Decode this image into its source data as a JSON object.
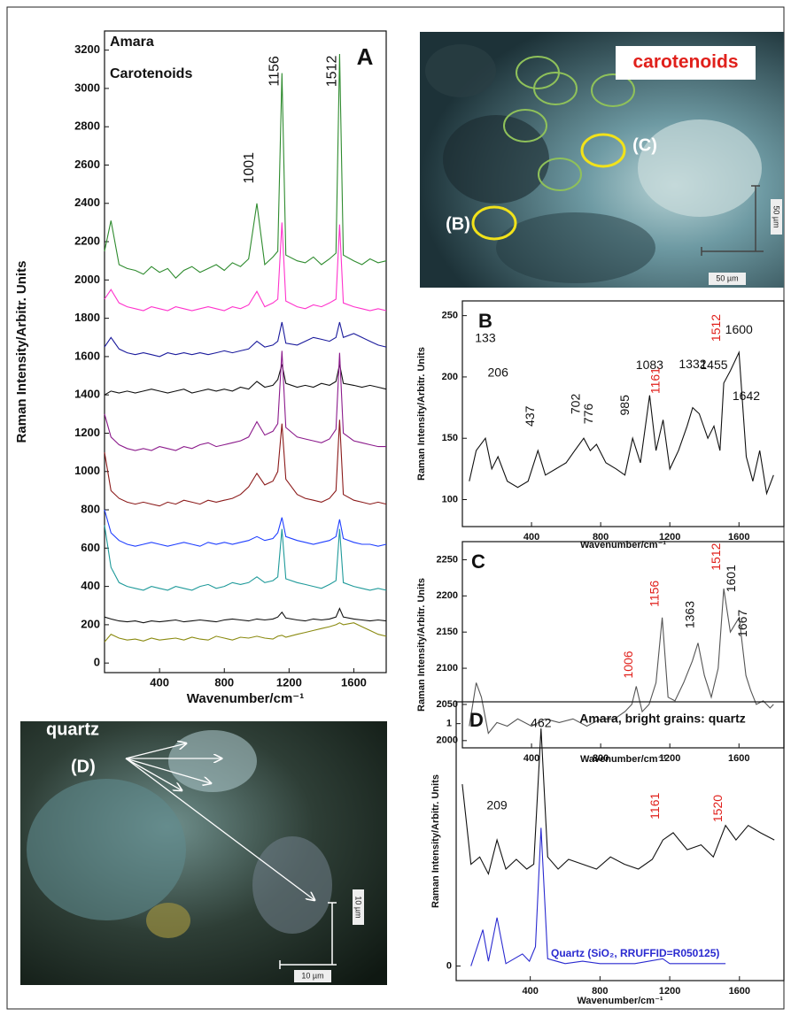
{
  "chart_data": [
    {
      "type": "line",
      "panel": "A",
      "title": "Amara",
      "subtitle": "Carotenoids",
      "x_label": "Wavenumber/cm⁻¹",
      "y_label": "Raman Intensity/Arbitr. Units",
      "x": [
        60,
        100,
        150,
        200,
        250,
        300,
        350,
        400,
        450,
        500,
        550,
        600,
        650,
        700,
        750,
        800,
        850,
        900,
        950,
        1001,
        1050,
        1100,
        1130,
        1156,
        1180,
        1250,
        1300,
        1350,
        1400,
        1450,
        1490,
        1512,
        1535,
        1600,
        1650,
        1700,
        1750,
        1800
      ],
      "series": [
        {
          "color": "#2e8b2e",
          "values": [
            2150,
            2310,
            2080,
            2060,
            2050,
            2030,
            2070,
            2040,
            2060,
            2010,
            2050,
            2070,
            2040,
            2060,
            2080,
            2050,
            2090,
            2070,
            2110,
            2400,
            2080,
            2120,
            2150,
            3080,
            2130,
            2100,
            2090,
            2120,
            2080,
            2110,
            2140,
            3180,
            2130,
            2100,
            2080,
            2110,
            2090,
            2100
          ]
        },
        {
          "color": "#ff33cc",
          "values": [
            1900,
            1950,
            1880,
            1860,
            1850,
            1840,
            1860,
            1850,
            1840,
            1860,
            1850,
            1840,
            1850,
            1860,
            1850,
            1840,
            1860,
            1850,
            1870,
            1940,
            1860,
            1880,
            1900,
            2300,
            1890,
            1860,
            1850,
            1870,
            1860,
            1880,
            1900,
            2290,
            1880,
            1860,
            1850,
            1840,
            1850,
            1840
          ]
        },
        {
          "color": "#1a1a9c",
          "values": [
            1650,
            1700,
            1640,
            1620,
            1610,
            1620,
            1610,
            1600,
            1620,
            1610,
            1620,
            1610,
            1620,
            1610,
            1620,
            1630,
            1620,
            1630,
            1640,
            1680,
            1650,
            1660,
            1680,
            1780,
            1670,
            1660,
            1680,
            1700,
            1690,
            1680,
            1700,
            1780,
            1700,
            1720,
            1700,
            1680,
            1660,
            1650
          ]
        },
        {
          "color": "#111111",
          "values": [
            1400,
            1420,
            1410,
            1420,
            1410,
            1420,
            1430,
            1420,
            1410,
            1420,
            1430,
            1410,
            1420,
            1430,
            1420,
            1430,
            1420,
            1440,
            1430,
            1470,
            1440,
            1450,
            1480,
            1560,
            1460,
            1440,
            1450,
            1440,
            1460,
            1450,
            1470,
            1560,
            1460,
            1450,
            1440,
            1450,
            1440,
            1430
          ]
        },
        {
          "color": "#8b1a8b",
          "values": [
            1300,
            1180,
            1140,
            1120,
            1110,
            1120,
            1110,
            1130,
            1120,
            1110,
            1130,
            1120,
            1140,
            1150,
            1130,
            1140,
            1150,
            1160,
            1180,
            1260,
            1190,
            1210,
            1250,
            1630,
            1230,
            1180,
            1170,
            1160,
            1150,
            1170,
            1220,
            1620,
            1200,
            1160,
            1150,
            1140,
            1130,
            1130
          ]
        },
        {
          "color": "#8b1a1a",
          "values": [
            1100,
            900,
            860,
            840,
            830,
            840,
            830,
            820,
            840,
            830,
            850,
            840,
            830,
            850,
            840,
            850,
            860,
            880,
            920,
            990,
            930,
            950,
            1000,
            1250,
            960,
            880,
            860,
            850,
            840,
            860,
            900,
            1270,
            880,
            850,
            840,
            830,
            840,
            830
          ]
        },
        {
          "color": "#1f3fff",
          "values": [
            800,
            680,
            640,
            620,
            610,
            620,
            630,
            620,
            610,
            620,
            630,
            620,
            610,
            630,
            620,
            630,
            620,
            630,
            640,
            660,
            640,
            650,
            680,
            760,
            660,
            640,
            630,
            620,
            630,
            640,
            660,
            750,
            650,
            630,
            620,
            620,
            610,
            620
          ]
        },
        {
          "color": "#1f9a9a",
          "values": [
            720,
            500,
            420,
            400,
            390,
            380,
            400,
            390,
            380,
            400,
            390,
            380,
            400,
            410,
            390,
            400,
            420,
            410,
            420,
            450,
            420,
            430,
            450,
            700,
            440,
            420,
            410,
            400,
            390,
            410,
            430,
            700,
            420,
            400,
            390,
            380,
            390,
            380
          ]
        },
        {
          "color": "#111111",
          "values": [
            240,
            230,
            220,
            215,
            220,
            210,
            220,
            215,
            220,
            225,
            215,
            220,
            225,
            220,
            215,
            225,
            230,
            225,
            220,
            230,
            225,
            230,
            240,
            265,
            235,
            225,
            220,
            230,
            225,
            230,
            240,
            285,
            240,
            230,
            225,
            220,
            225,
            220
          ]
        },
        {
          "color": "#8a8a10",
          "values": [
            110,
            150,
            130,
            120,
            125,
            115,
            130,
            120,
            125,
            130,
            120,
            135,
            125,
            120,
            140,
            130,
            120,
            135,
            130,
            140,
            130,
            125,
            140,
            145,
            135,
            150,
            160,
            170,
            180,
            190,
            200,
            210,
            200,
            210,
            190,
            170,
            150,
            140
          ]
        }
      ],
      "annotations": [
        {
          "label": "1001",
          "x": 1001,
          "y": 2585,
          "color": "#111111",
          "vertical": true
        },
        {
          "label": "1156",
          "x": 1156,
          "y": 3090,
          "color": "#111111",
          "vertical": true
        },
        {
          "label": "1512",
          "x": 1512,
          "y": 3090,
          "color": "#111111",
          "vertical": true
        }
      ],
      "xlim": [
        60,
        1800
      ],
      "xticks": [
        400,
        800,
        1200,
        1600
      ],
      "ylim": [
        -50,
        3300
      ],
      "yticks": [
        0,
        200,
        400,
        600,
        800,
        1000,
        1200,
        1400,
        1600,
        1800,
        2000,
        2200,
        2400,
        2600,
        2800,
        3000,
        3200
      ]
    },
    {
      "type": "line",
      "panel": "B",
      "x_label": "Wavenumber/cm⁻¹",
      "y_label": "Raman Intensity/Arbitr. Units",
      "x": [
        40,
        80,
        133,
        170,
        206,
        260,
        320,
        380,
        437,
        480,
        540,
        600,
        650,
        702,
        740,
        776,
        830,
        890,
        940,
        985,
        1030,
        1083,
        1120,
        1161,
        1200,
        1250,
        1300,
        1332,
        1370,
        1420,
        1455,
        1490,
        1512,
        1550,
        1600,
        1642,
        1680,
        1720,
        1760,
        1800
      ],
      "series": [
        {
          "color": "#111111",
          "values": [
            115,
            140,
            150,
            125,
            135,
            115,
            110,
            115,
            140,
            120,
            125,
            130,
            140,
            150,
            140,
            145,
            130,
            125,
            120,
            150,
            130,
            185,
            140,
            165,
            125,
            140,
            160,
            175,
            170,
            150,
            160,
            140,
            195,
            205,
            220,
            135,
            115,
            140,
            105,
            120
          ]
        }
      ],
      "annotations": [
        {
          "label": "133",
          "x": 133,
          "y": 231,
          "color": "#111111",
          "vertical": false
        },
        {
          "label": "206",
          "x": 206,
          "y": 203,
          "color": "#111111",
          "vertical": false
        },
        {
          "label": "437",
          "x": 437,
          "y": 168,
          "color": "#111111",
          "vertical": true
        },
        {
          "label": "702",
          "x": 702,
          "y": 178,
          "color": "#111111",
          "vertical": true
        },
        {
          "label": "776",
          "x": 776,
          "y": 170,
          "color": "#111111",
          "vertical": true
        },
        {
          "label": "985",
          "x": 985,
          "y": 177,
          "color": "#111111",
          "vertical": true
        },
        {
          "label": "1083",
          "x": 1083,
          "y": 209,
          "color": "#111111",
          "vertical": false
        },
        {
          "label": "1161",
          "x": 1161,
          "y": 197,
          "color": "#e0201b",
          "vertical": true
        },
        {
          "label": "1332",
          "x": 1332,
          "y": 210,
          "color": "#111111",
          "vertical": false
        },
        {
          "label": "1455",
          "x": 1455,
          "y": 209,
          "color": "#111111",
          "vertical": false
        },
        {
          "label": "1512",
          "x": 1512,
          "y": 240,
          "color": "#e0201b",
          "vertical": true
        },
        {
          "label": "1600",
          "x": 1600,
          "y": 238,
          "color": "#111111",
          "vertical": false
        },
        {
          "label": "1642",
          "x": 1642,
          "y": 184,
          "color": "#111111",
          "vertical": false
        }
      ],
      "xlim": [
        0,
        1860
      ],
      "xticks": [
        400,
        800,
        1200,
        1600
      ],
      "ylim": [
        78,
        262
      ],
      "yticks": [
        100,
        150,
        200,
        250
      ]
    },
    {
      "type": "line",
      "panel": "C",
      "x_label": "Wavenumber/cm⁻¹",
      "y_label": "Raman Intensity/Arbitr. Units",
      "x": [
        40,
        80,
        110,
        150,
        200,
        260,
        320,
        400,
        480,
        560,
        640,
        720,
        800,
        880,
        940,
        980,
        1006,
        1040,
        1080,
        1120,
        1156,
        1190,
        1230,
        1280,
        1330,
        1363,
        1400,
        1440,
        1480,
        1512,
        1550,
        1601,
        1640,
        1667,
        1700,
        1740,
        1780,
        1800
      ],
      "series": [
        {
          "color": "#555555",
          "values": [
            2020,
            2080,
            2060,
            2010,
            2025,
            2020,
            2030,
            2020,
            2030,
            2025,
            2030,
            2020,
            2030,
            2030,
            2040,
            2050,
            2075,
            2040,
            2050,
            2080,
            2170,
            2060,
            2055,
            2080,
            2110,
            2135,
            2090,
            2060,
            2100,
            2210,
            2150,
            2170,
            2090,
            2070,
            2050,
            2055,
            2045,
            2050
          ]
        }
      ],
      "annotations": [
        {
          "label": "1006",
          "x": 1006,
          "y": 2105,
          "color": "#e0201b",
          "vertical": true
        },
        {
          "label": "1156",
          "x": 1156,
          "y": 2203,
          "color": "#e0201b",
          "vertical": true
        },
        {
          "label": "1363",
          "x": 1363,
          "y": 2174,
          "color": "#111111",
          "vertical": true
        },
        {
          "label": "1512",
          "x": 1512,
          "y": 2254,
          "color": "#e0201b",
          "vertical": true
        },
        {
          "label": "1601",
          "x": 1601,
          "y": 2224,
          "color": "#111111",
          "vertical": true
        },
        {
          "label": "1667",
          "x": 1667,
          "y": 2162,
          "color": "#111111",
          "vertical": true
        }
      ],
      "xlim": [
        0,
        1860
      ],
      "xticks": [
        400,
        800,
        1200,
        1600
      ],
      "ylim": [
        1990,
        2275
      ],
      "yticks": [
        2000,
        2050,
        2100,
        2150,
        2200,
        2250
      ]
    },
    {
      "type": "line",
      "panel": "D",
      "title": "Amara, bright grains: quartz",
      "x_label": "Wavenumber/cm⁻¹",
      "y_label": "Raman Intensity/Arbitr. Units",
      "series": [
        {
          "color": "#111111",
          "x": [
            10,
            60,
            110,
            160,
            209,
            260,
            320,
            380,
            420,
            462,
            500,
            560,
            620,
            700,
            780,
            860,
            940,
            1020,
            1100,
            1161,
            1220,
            1300,
            1380,
            1450,
            1520,
            1580,
            1650,
            1720,
            1800
          ],
          "values": [
            0.75,
            0.42,
            0.45,
            0.38,
            0.52,
            0.4,
            0.44,
            0.4,
            0.42,
            0.98,
            0.45,
            0.4,
            0.44,
            0.42,
            0.4,
            0.45,
            0.42,
            0.4,
            0.44,
            0.52,
            0.55,
            0.48,
            0.5,
            0.45,
            0.58,
            0.52,
            0.58,
            0.55,
            0.52
          ]
        },
        {
          "name": "Quartz (SiO₂, RRUFFID=R050125)",
          "color": "#2a2ad0",
          "x": [
            60,
            128,
            160,
            209,
            260,
            355,
            395,
            430,
            462,
            500,
            600,
            700,
            800,
            1000,
            1160,
            1200,
            1400,
            1520
          ],
          "values": [
            0,
            0.15,
            0.02,
            0.2,
            0.01,
            0.05,
            0.02,
            0.08,
            0.57,
            0.03,
            0.01,
            0.02,
            0.01,
            0.01,
            0.03,
            0.01,
            0.01,
            0.01
          ]
        }
      ],
      "annotations": [
        {
          "label": "462",
          "x": 462,
          "y": 1.0,
          "color": "#111111",
          "vertical": false
        },
        {
          "label": "209",
          "x": 209,
          "y": 0.66,
          "color": "#111111",
          "vertical": false
        },
        {
          "label": "1161",
          "x": 1161,
          "y": 0.66,
          "color": "#e0201b",
          "vertical": true
        },
        {
          "label": "1520",
          "x": 1520,
          "y": 0.65,
          "color": "#e0201b",
          "vertical": true
        }
      ],
      "xlim": [
        -25,
        1855
      ],
      "xticks": [
        400,
        800,
        1200,
        1600
      ],
      "ylim": [
        -0.06,
        1.09
      ],
      "yticks": [
        0,
        1
      ]
    }
  ],
  "images": {
    "top": {
      "label": "carotenoids",
      "marker_b": "(B)",
      "marker_c": "(C)",
      "scale_h": "50 µm",
      "scale_v": "50 µm"
    },
    "bottom": {
      "label": "quartz",
      "marker": "(D)",
      "scale_h": "10 µm",
      "scale_v": "10 µm"
    }
  }
}
